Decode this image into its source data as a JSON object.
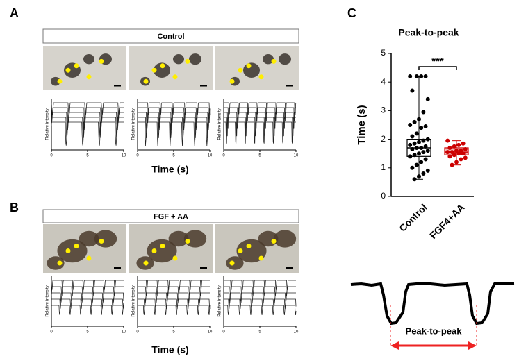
{
  "panels": [
    {
      "label": "A",
      "header": "Control",
      "trace_ylabel": "Relative intensity",
      "xlim": [
        0,
        10
      ],
      "xticks": [
        0,
        5,
        10
      ],
      "xlabel": "Time (s)"
    },
    {
      "label": "B",
      "header": "FGF + AA",
      "trace_ylabel": "Relative intensity",
      "xlim": [
        0,
        10
      ],
      "xticks": [
        0,
        5,
        10
      ],
      "xlabel": "Time (s)"
    }
  ],
  "chart_data": {
    "type": "box",
    "label": "C",
    "title": "Peak-to-peak",
    "ylabel": "Time (s)",
    "categories": [
      "Control",
      "FGF4+AA"
    ],
    "colors": [
      "#000000",
      "#cc0000"
    ],
    "ylim": [
      0,
      5
    ],
    "yticks": [
      0,
      1,
      2,
      3,
      4,
      5
    ],
    "annotation": "***",
    "boxes": [
      {
        "min": 0.6,
        "q1": 1.4,
        "median": 1.7,
        "q3": 2.0,
        "max": 4.2,
        "points": [
          4.2,
          4.2,
          4.2,
          4.2,
          3.7,
          3.4,
          2.95,
          2.7,
          2.6,
          2.5,
          2.45,
          2.4,
          2.2,
          2.1,
          2.0,
          1.95,
          1.9,
          1.85,
          1.8,
          1.75,
          1.7,
          1.7,
          1.65,
          1.6,
          1.55,
          1.5,
          1.45,
          1.4,
          1.3,
          1.2,
          1.1,
          1.0,
          0.9,
          0.8,
          0.7,
          0.6
        ]
      },
      {
        "min": 1.1,
        "q1": 1.45,
        "median": 1.55,
        "q3": 1.7,
        "max": 1.95,
        "points": [
          1.95,
          1.85,
          1.8,
          1.75,
          1.7,
          1.65,
          1.6,
          1.6,
          1.55,
          1.55,
          1.5,
          1.5,
          1.45,
          1.4,
          1.35,
          1.3,
          1.2,
          1.1
        ]
      }
    ]
  },
  "schematic": {
    "label": "Peak-to-peak"
  }
}
